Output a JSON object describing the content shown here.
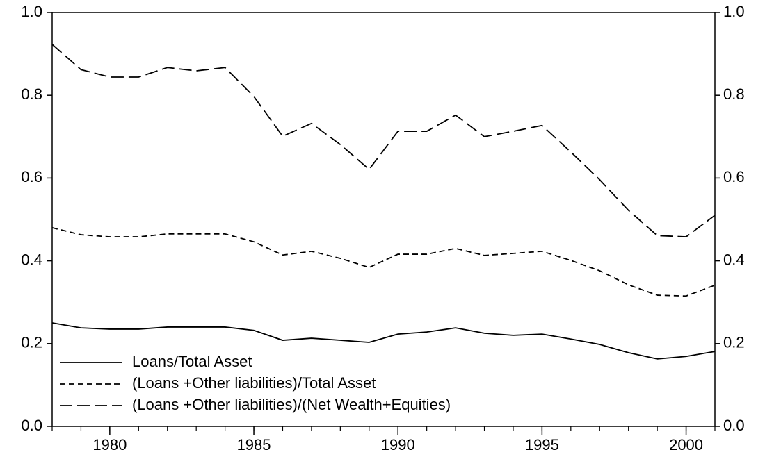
{
  "chart_data": {
    "type": "line",
    "x": [
      1978,
      1979,
      1980,
      1981,
      1982,
      1983,
      1984,
      1985,
      1986,
      1987,
      1988,
      1989,
      1990,
      1991,
      1992,
      1993,
      1994,
      1995,
      1996,
      1997,
      1998,
      1999,
      2000,
      2001
    ],
    "series": [
      {
        "name": "Loans/Total Asset",
        "color": "#000000",
        "dash": "solid",
        "values": [
          0.25,
          0.238,
          0.235,
          0.235,
          0.24,
          0.24,
          0.24,
          0.232,
          0.208,
          0.213,
          0.208,
          0.203,
          0.223,
          0.228,
          0.238,
          0.225,
          0.22,
          0.223,
          0.211,
          0.198,
          0.178,
          0.163,
          0.169,
          0.181
        ]
      },
      {
        "name": "(Loans +Other liabilities)/Total Asset",
        "color": "#000000",
        "dash": "short",
        "values": [
          0.48,
          0.463,
          0.458,
          0.458,
          0.465,
          0.465,
          0.465,
          0.446,
          0.414,
          0.423,
          0.406,
          0.384,
          0.416,
          0.416,
          0.43,
          0.413,
          0.418,
          0.423,
          0.401,
          0.376,
          0.342,
          0.317,
          0.315,
          0.341
        ]
      },
      {
        "name": "(Loans +Other liabilities)/(Net Wealth+Equities)",
        "color": "#000000",
        "dash": "long",
        "values": [
          0.923,
          0.862,
          0.844,
          0.844,
          0.867,
          0.859,
          0.867,
          0.797,
          0.701,
          0.732,
          0.681,
          0.621,
          0.713,
          0.713,
          0.752,
          0.7,
          0.713,
          0.727,
          0.663,
          0.596,
          0.522,
          0.461,
          0.458,
          0.51
        ]
      }
    ],
    "xlim": [
      1978,
      2001
    ],
    "xticks": [
      1980,
      1985,
      1990,
      1995,
      2000
    ],
    "ylim": [
      0,
      1
    ],
    "yticks": [
      {
        "value": 0,
        "label": "0.0"
      },
      {
        "value": 0.2,
        "label": "0.2"
      },
      {
        "value": 0.4,
        "label": "0.4"
      },
      {
        "value": 0.6,
        "label": "0.6"
      },
      {
        "value": 0.8,
        "label": "0.8"
      },
      {
        "value": 1,
        "label": "1.0"
      }
    ],
    "y2lim": [
      0,
      1
    ],
    "y2ticks": [
      {
        "value": 0,
        "label": "0.0"
      },
      {
        "value": 0.2,
        "label": "0.2"
      },
      {
        "value": 0.4,
        "label": "0.4"
      },
      {
        "value": 0.6,
        "label": "0.6"
      },
      {
        "value": 0.8,
        "label": "0.8"
      },
      {
        "value": 1,
        "label": "1.0"
      }
    ],
    "legend": "lower-left",
    "grid": false
  }
}
